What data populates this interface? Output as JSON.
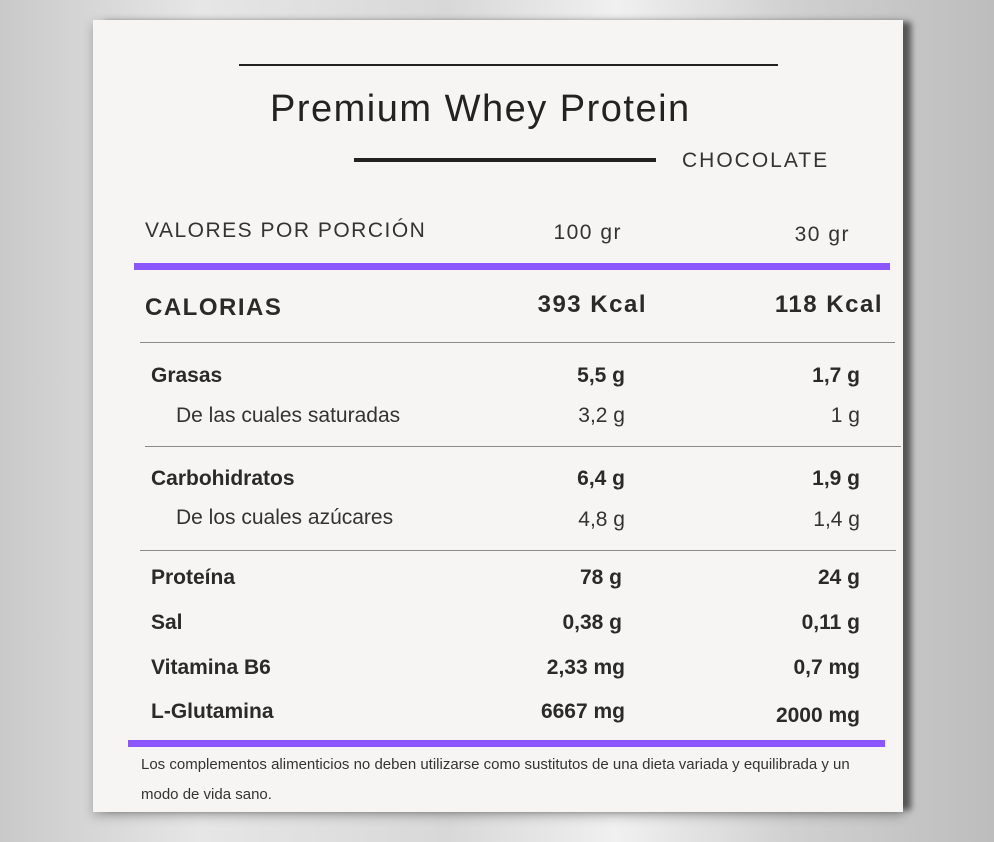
{
  "title": "Premium Whey Protein",
  "flavor": "CHOCOLATE",
  "header": {
    "label": "VALORES POR PORCIÓN",
    "col1": "100 gr",
    "col2": "30 gr"
  },
  "calories": {
    "label": "CALORIAS",
    "col1": "393 Kcal",
    "col2": "118 Kcal"
  },
  "rows": [
    {
      "label": "Grasas",
      "col1": "5,5 g",
      "col2": "1,7 g"
    },
    {
      "label": "De las cuales saturadas",
      "col1": "3,2 g",
      "col2": "1 g"
    },
    {
      "label": "Carbohidratos",
      "col1": "6,4 g",
      "col2": "1,9 g"
    },
    {
      "label": "De los cuales azúcares",
      "col1": "4,8 g",
      "col2": "1,4 g"
    },
    {
      "label": "Proteína",
      "col1": "78 g",
      "col2": "24 g"
    },
    {
      "label": "Sal",
      "col1": "0,38 g",
      "col2": "0,11 g"
    },
    {
      "label": "Vitamina B6",
      "col1": "2,33 mg",
      "col2": "0,7 mg"
    },
    {
      "label": "L-Glutamina",
      "col1": "6667 mg",
      "col2": "2000 mg"
    }
  ],
  "footnote": "Los complementos alimenticios no deben utilizarse como sustitutos de una dieta variada y equilibrada y un modo de vida sano.",
  "colors": {
    "accent": "#8b55ff"
  }
}
